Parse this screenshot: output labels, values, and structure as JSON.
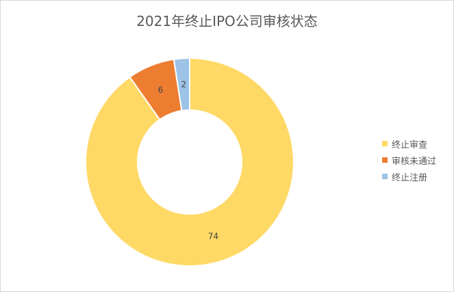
{
  "chart_data": {
    "type": "pie",
    "variant": "doughnut",
    "title": "2021年终止IPO公司审核状态",
    "categories": [
      "终止审查",
      "审核未通过",
      "终止注册"
    ],
    "values": [
      74,
      6,
      2
    ],
    "colors": [
      "#FFD966",
      "#ED7D31",
      "#9DC3E6"
    ],
    "legend_position": "right",
    "data_labels": true
  }
}
